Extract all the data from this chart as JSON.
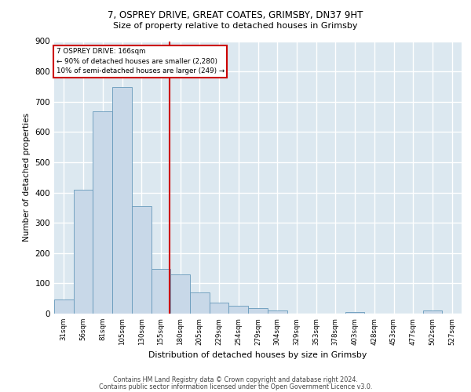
{
  "title_line1": "7, OSPREY DRIVE, GREAT COATES, GRIMSBY, DN37 9HT",
  "title_line2": "Size of property relative to detached houses in Grimsby",
  "xlabel": "Distribution of detached houses by size in Grimsby",
  "ylabel": "Number of detached properties",
  "footer_line1": "Contains HM Land Registry data © Crown copyright and database right 2024.",
  "footer_line2": "Contains public sector information licensed under the Open Government Licence v3.0.",
  "bar_labels": [
    "31sqm",
    "56sqm",
    "81sqm",
    "105sqm",
    "130sqm",
    "155sqm",
    "180sqm",
    "205sqm",
    "229sqm",
    "254sqm",
    "279sqm",
    "304sqm",
    "329sqm",
    "353sqm",
    "378sqm",
    "403sqm",
    "428sqm",
    "453sqm",
    "477sqm",
    "502sqm",
    "527sqm"
  ],
  "bar_values": [
    46,
    410,
    667,
    748,
    355,
    148,
    130,
    70,
    35,
    27,
    17,
    10,
    0,
    0,
    0,
    5,
    0,
    0,
    0,
    10,
    0
  ],
  "bar_color": "#c8d8e8",
  "bar_edge_color": "#6699bb",
  "annotation_line0": "7 OSPREY DRIVE: 166sqm",
  "annotation_line1": "← 90% of detached houses are smaller (2,280)",
  "annotation_line2": "10% of semi-detached houses are larger (249) →",
  "vline_color": "#cc0000",
  "box_color": "#cc0000",
  "ylim": [
    0,
    900
  ],
  "yticks": [
    0,
    100,
    200,
    300,
    400,
    500,
    600,
    700,
    800,
    900
  ],
  "bg_color": "#dce8f0",
  "grid_color": "#ffffff",
  "vline_x": 5.44
}
